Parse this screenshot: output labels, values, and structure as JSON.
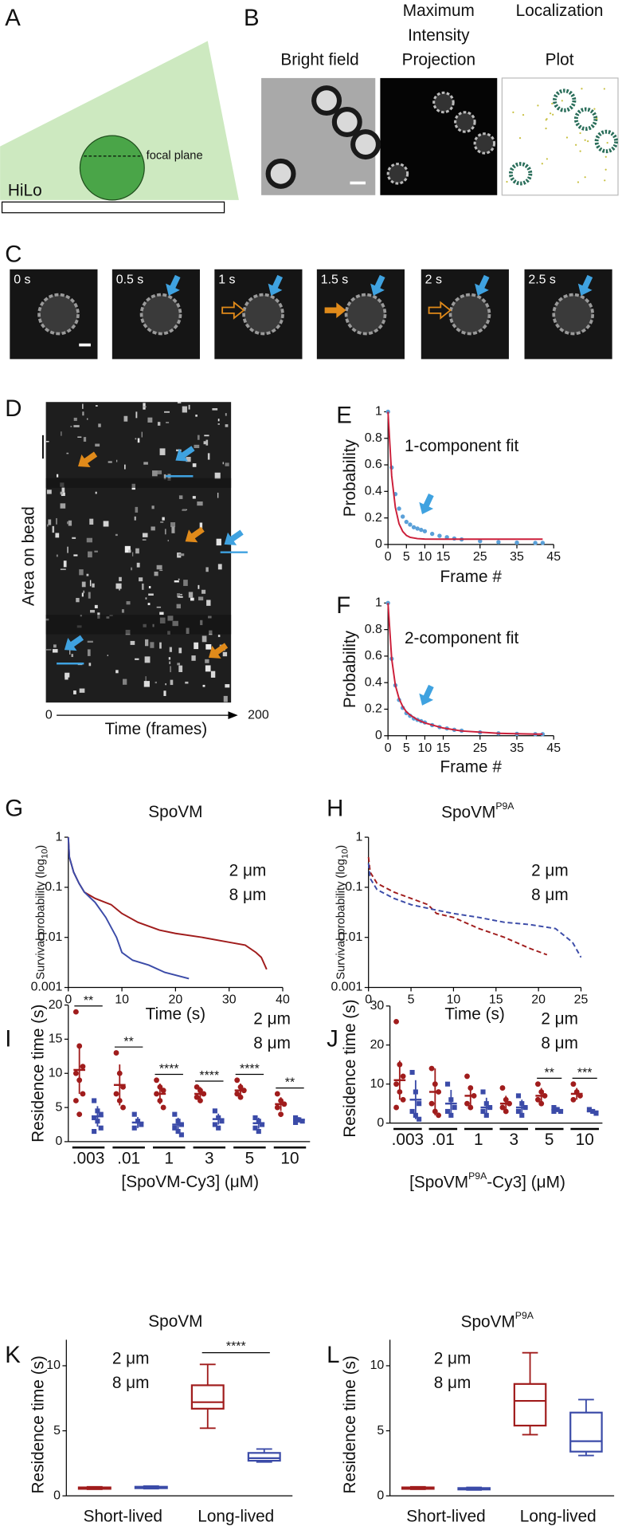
{
  "panels": {
    "A": {
      "label": "A",
      "focal_plane": "focal plane",
      "hilo": "HiLo"
    },
    "B": {
      "label": "B",
      "image_titles": [
        [
          "Bright field"
        ],
        [
          "Maximum",
          "Intensity",
          "Projection"
        ],
        [
          "Localization",
          "Plot"
        ]
      ]
    },
    "C": {
      "label": "C",
      "frame_times": [
        "0 s",
        "0.5 s",
        "1 s",
        "1.5 s",
        "2 s",
        "2.5 s"
      ]
    },
    "D": {
      "label": "D",
      "ylabel": "Area on bead",
      "xlabel": "Time (frames)",
      "x_start": "0",
      "x_end": "200"
    }
  },
  "chart_data": [
    {
      "type": "line",
      "panel": "E",
      "annotation": "1-component fit",
      "xlabel": "Frame #",
      "ylabel": "Probability",
      "xlim": [
        0,
        45
      ],
      "xticks": [
        0,
        5,
        10,
        15,
        25,
        35,
        45
      ],
      "ylim": [
        0,
        1
      ],
      "yticks": [
        0,
        0.2,
        0.4,
        0.6,
        0.8,
        1
      ],
      "series": [
        {
          "style": "points",
          "color": "#5aa0d8",
          "x": [
            0,
            1,
            2,
            3,
            4,
            5,
            6,
            7,
            8,
            9,
            10,
            12,
            14,
            16,
            18,
            20,
            25,
            30,
            35,
            40,
            42
          ],
          "values": [
            1,
            0.58,
            0.38,
            0.27,
            0.21,
            0.17,
            0.15,
            0.13,
            0.12,
            0.11,
            0.1,
            0.08,
            0.065,
            0.055,
            0.045,
            0.038,
            0.025,
            0.018,
            0.014,
            0.012,
            0.012
          ]
        },
        {
          "style": "line",
          "color": "#cc1f3a",
          "x": [
            0,
            1,
            2,
            3,
            4,
            5,
            6,
            8,
            10,
            15,
            20,
            30,
            40,
            42
          ],
          "values": [
            1,
            0.517,
            0.278,
            0.156,
            0.098,
            0.068,
            0.054,
            0.044,
            0.041,
            0.04,
            0.04,
            0.04,
            0.04,
            0.04
          ]
        }
      ]
    },
    {
      "type": "line",
      "panel": "F",
      "annotation": "2-component fit",
      "xlabel": "Frame #",
      "ylabel": "Probability",
      "xlim": [
        0,
        45
      ],
      "xticks": [
        0,
        5,
        10,
        15,
        25,
        35,
        45
      ],
      "ylim": [
        0,
        1
      ],
      "yticks": [
        0,
        0.2,
        0.4,
        0.6,
        0.8,
        1
      ],
      "series": [
        {
          "style": "points",
          "color": "#5aa0d8",
          "x": [
            0,
            1,
            2,
            3,
            4,
            5,
            6,
            7,
            8,
            9,
            10,
            12,
            14,
            16,
            18,
            20,
            25,
            30,
            35,
            40,
            42
          ],
          "values": [
            1,
            0.58,
            0.38,
            0.27,
            0.21,
            0.17,
            0.15,
            0.13,
            0.12,
            0.11,
            0.1,
            0.08,
            0.065,
            0.055,
            0.045,
            0.038,
            0.025,
            0.018,
            0.014,
            0.012,
            0.012
          ]
        },
        {
          "style": "line",
          "color": "#cc1f3a",
          "x": [
            0,
            1,
            2,
            3,
            4,
            5,
            6,
            8,
            10,
            15,
            20,
            30,
            40,
            42
          ],
          "values": [
            1,
            0.58,
            0.38,
            0.28,
            0.22,
            0.18,
            0.157,
            0.12,
            0.097,
            0.058,
            0.036,
            0.018,
            0.012,
            0.012
          ]
        }
      ]
    },
    {
      "type": "line",
      "panel": "G",
      "title": "SpoVM",
      "xlabel": "Time (s)",
      "ylabel": {
        "text": "Survival probability (log",
        "subscript": "10",
        "text_after": ")"
      },
      "log_y": true,
      "xlim": [
        0,
        40
      ],
      "xticks": [
        0,
        10,
        20,
        30,
        40
      ],
      "ylim": [
        0.001,
        1
      ],
      "yticks": [
        0.001,
        0.01,
        0.1,
        1
      ],
      "series": [
        {
          "name": "2 μm",
          "style": "line",
          "dash": false,
          "color": "#a01c1c",
          "x": [
            0,
            0.2,
            1,
            2,
            3,
            5,
            8,
            10,
            13,
            17,
            20,
            25,
            30,
            33,
            35,
            36,
            37
          ],
          "values": [
            1,
            0.4,
            0.2,
            0.12,
            0.08,
            0.06,
            0.045,
            0.03,
            0.02,
            0.014,
            0.012,
            0.01,
            0.008,
            0.007,
            0.005,
            0.004,
            0.0023
          ]
        },
        {
          "name": "8 μm",
          "style": "line",
          "dash": false,
          "color": "#3b4ba8",
          "x": [
            0,
            0.2,
            1,
            2,
            3,
            5,
            7,
            9,
            10,
            12,
            15,
            18,
            22.5
          ],
          "values": [
            1,
            0.4,
            0.2,
            0.12,
            0.08,
            0.05,
            0.025,
            0.01,
            0.005,
            0.0035,
            0.0028,
            0.002,
            0.0015
          ]
        }
      ]
    },
    {
      "type": "line",
      "panel": "H",
      "title": {
        "text": "SpoVM",
        "superscript": "P9A"
      },
      "xlabel": "Time (s)",
      "ylabel": {
        "text": "Survival probability (log",
        "subscript": "10",
        "text_after": ")"
      },
      "log_y": true,
      "xlim": [
        0,
        25
      ],
      "xticks": [
        0,
        5,
        10,
        15,
        20,
        25
      ],
      "ylim": [
        0.001,
        1
      ],
      "yticks": [
        0.001,
        0.01,
        0.1,
        1
      ],
      "series": [
        {
          "name": "2 μm",
          "style": "line",
          "dash": true,
          "color": "#a01c1c",
          "x": [
            0,
            0.2,
            1,
            3,
            5,
            7,
            8,
            10,
            13,
            16,
            19,
            21
          ],
          "values": [
            0.4,
            0.2,
            0.12,
            0.08,
            0.06,
            0.045,
            0.03,
            0.025,
            0.015,
            0.01,
            0.006,
            0.0045
          ]
        },
        {
          "name": "8 μm",
          "style": "line",
          "dash": true,
          "color": "#3b4ba8",
          "x": [
            0,
            0.2,
            1,
            3,
            5,
            8,
            10,
            13,
            16,
            19,
            22,
            24,
            25
          ],
          "values": [
            0.3,
            0.15,
            0.09,
            0.06,
            0.045,
            0.035,
            0.03,
            0.025,
            0.02,
            0.018,
            0.015,
            0.008,
            0.004
          ]
        }
      ]
    },
    {
      "type": "strip",
      "panel": "I",
      "ylabel": "Residence time (s)",
      "xlabel": "[SpoVM-Cy3] (μM)",
      "categories": [
        ".003",
        ".01",
        "1",
        "3",
        "5",
        "10"
      ],
      "ylim": [
        0,
        20
      ],
      "yticks": [
        0,
        5,
        10,
        15,
        20
      ],
      "significance": [
        "**",
        "**",
        "****",
        "****",
        "****",
        "**"
      ],
      "series": [
        {
          "name": "2 μm",
          "color": "#a01c1c",
          "marker": "circle",
          "mean": [
            10.5,
            8.3,
            7,
            7,
            7.5,
            5.5
          ],
          "sd": [
            3.5,
            3,
            1.5,
            1,
            1,
            1
          ],
          "points": [
            [
              19,
              14,
              11,
              10,
              9,
              7,
              6,
              4
            ],
            [
              13,
              10,
              8,
              7,
              6,
              5
            ],
            [
              9,
              8,
              7.5,
              7,
              6,
              5
            ],
            [
              8,
              7.5,
              7,
              6.5,
              6
            ],
            [
              9,
              8,
              7.5,
              7,
              6.5
            ],
            [
              7,
              6,
              5.5,
              5,
              4
            ]
          ]
        },
        {
          "name": "8 μm",
          "color": "#3b4ba8",
          "marker": "square",
          "mean": [
            3.7,
            2.8,
            2.5,
            3.3,
            2.7,
            3.2
          ],
          "sd": [
            1.5,
            0.8,
            1,
            0.8,
            0.8,
            0.4
          ],
          "points": [
            [
              6,
              4.5,
              4,
              3.5,
              3,
              2,
              1.5
            ],
            [
              4,
              3,
              2.5,
              2
            ],
            [
              4,
              3,
              2.5,
              2,
              1.5,
              1
            ],
            [
              4.5,
              3.5,
              3,
              2.5,
              2
            ],
            [
              3.5,
              3,
              2.5,
              2,
              1.5
            ],
            [
              3.5,
              3.2,
              3,
              2.8
            ]
          ]
        }
      ]
    },
    {
      "type": "strip",
      "panel": "J",
      "ylabel": "Residence time (s)",
      "xlabel": {
        "text": "[SpoVM",
        "superscript": "P9A",
        "text_after": "-Cy3] (μM)"
      },
      "categories": [
        ".003",
        ".01",
        "1",
        "3",
        "5",
        "10"
      ],
      "ylim": [
        0,
        30
      ],
      "yticks": [
        0,
        10,
        20,
        30
      ],
      "significance": [
        null,
        null,
        null,
        null,
        "**",
        "***"
      ],
      "series": [
        {
          "name": "2 μm",
          "color": "#a01c1c",
          "marker": "circle",
          "mean": [
            11,
            8,
            7,
            5,
            7,
            7.5
          ],
          "sd": [
            5,
            6,
            2.5,
            2,
            2,
            1.5
          ],
          "points": [
            [
              26,
              15,
              12,
              10,
              8,
              6,
              4
            ],
            [
              14,
              10,
              8,
              5,
              3,
              2
            ],
            [
              12,
              9,
              7,
              5,
              4
            ],
            [
              9,
              6,
              5,
              4,
              3
            ],
            [
              10,
              8,
              7,
              6,
              5
            ],
            [
              10,
              8,
              7,
              6
            ]
          ]
        },
        {
          "name": "8 μm",
          "color": "#3b4ba8",
          "marker": "square",
          "mean": [
            6,
            5,
            4,
            4,
            3.3,
            3
          ],
          "sd": [
            5,
            3.5,
            2.5,
            2,
            0.5,
            0.5
          ],
          "points": [
            [
              13,
              8,
              5,
              3,
              2,
              1
            ],
            [
              10,
              6,
              4,
              3,
              2
            ],
            [
              8,
              5,
              4,
              3,
              2
            ],
            [
              7,
              5,
              4,
              3,
              2
            ],
            [
              4,
              3.5,
              3,
              3
            ],
            [
              3.5,
              3,
              2.5
            ]
          ]
        }
      ]
    },
    {
      "type": "box",
      "panel": "K",
      "title": "SpoVM",
      "ylabel": "Residence time (s)",
      "categories": [
        "Short-lived",
        "Long-lived"
      ],
      "ylim": [
        0,
        12
      ],
      "yticks": [
        0,
        5,
        10
      ],
      "significance": [
        null,
        "****"
      ],
      "series": [
        {
          "name": "2 μm",
          "color": "#a01c1c",
          "boxes": [
            {
              "min": 0.5,
              "q1": 0.55,
              "median": 0.6,
              "q3": 0.65,
              "max": 0.7
            },
            {
              "min": 5.2,
              "q1": 6.7,
              "median": 7.2,
              "q3": 8.5,
              "max": 10.1
            }
          ]
        },
        {
          "name": "8 μm",
          "color": "#3b4ba8",
          "boxes": [
            {
              "min": 0.55,
              "q1": 0.6,
              "median": 0.65,
              "q3": 0.7,
              "max": 0.75
            },
            {
              "min": 2.6,
              "q1": 2.7,
              "median": 2.9,
              "q3": 3.3,
              "max": 3.6
            }
          ]
        }
      ]
    },
    {
      "type": "box",
      "panel": "L",
      "title": {
        "text": "SpoVM",
        "superscript": "P9A"
      },
      "ylabel": "Residence time (s)",
      "categories": [
        "Short-lived",
        "Long-lived"
      ],
      "ylim": [
        0,
        12
      ],
      "yticks": [
        0,
        5,
        10
      ],
      "significance": [
        null,
        null
      ],
      "series": [
        {
          "name": "2 μm",
          "color": "#a01c1c",
          "boxes": [
            {
              "min": 0.5,
              "q1": 0.55,
              "median": 0.6,
              "q3": 0.65,
              "max": 0.7
            },
            {
              "min": 4.7,
              "q1": 5.4,
              "median": 7.3,
              "q3": 8.6,
              "max": 11
            }
          ]
        },
        {
          "name": "8 μm",
          "color": "#3b4ba8",
          "boxes": [
            {
              "min": 0.45,
              "q1": 0.5,
              "median": 0.55,
              "q3": 0.6,
              "max": 0.65
            },
            {
              "min": 3.1,
              "q1": 3.4,
              "median": 4.2,
              "q3": 6.4,
              "max": 7.4
            }
          ]
        }
      ]
    }
  ]
}
